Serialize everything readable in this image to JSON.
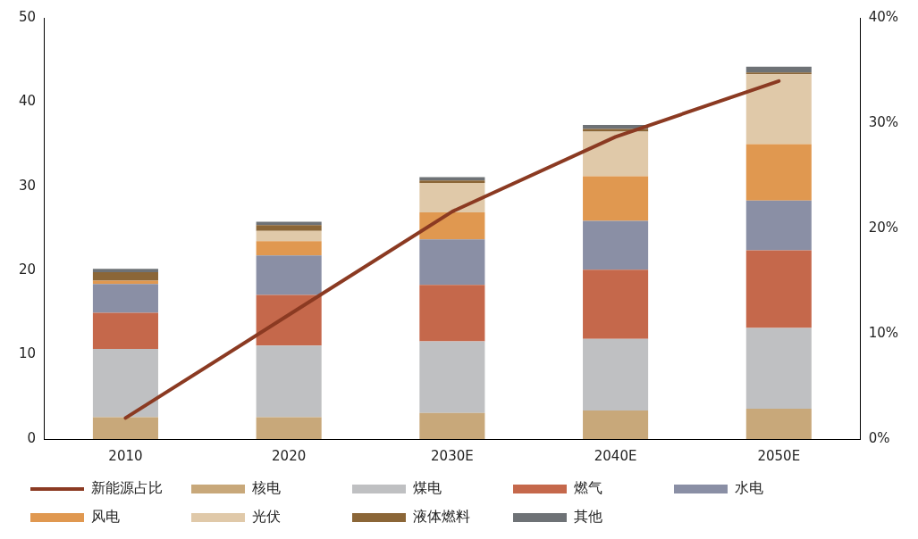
{
  "chart_data": {
    "type": "bar",
    "stacked": true,
    "categories": [
      "2010",
      "2020",
      "2030E",
      "2040E",
      "2050E"
    ],
    "series": [
      {
        "name": "核电",
        "color": "#c8a87a",
        "values": [
          2.6,
          2.6,
          3.1,
          3.4,
          3.6
        ]
      },
      {
        "name": "煤电",
        "color": "#bfc0c2",
        "values": [
          8.1,
          8.5,
          8.5,
          8.5,
          9.6
        ]
      },
      {
        "name": "燃气",
        "color": "#c5684b",
        "values": [
          4.3,
          6.0,
          6.7,
          8.2,
          9.2
        ]
      },
      {
        "name": "水电",
        "color": "#8a8fa5",
        "values": [
          3.4,
          4.7,
          5.4,
          5.8,
          5.9
        ]
      },
      {
        "name": "风电",
        "color": "#e09850",
        "values": [
          0.4,
          1.7,
          3.2,
          5.3,
          6.7
        ]
      },
      {
        "name": "光伏",
        "color": "#e0c9a9",
        "values": [
          0,
          1.2,
          3.5,
          5.3,
          8.3
        ]
      },
      {
        "name": "液体燃料",
        "color": "#8b6637",
        "values": [
          1.0,
          0.7,
          0.3,
          0.3,
          0.2
        ]
      },
      {
        "name": "其他",
        "color": "#6e7276",
        "values": [
          0.4,
          0.4,
          0.4,
          0.5,
          0.7
        ]
      },
      {
        "name": "新能源占比",
        "type": "line",
        "axis": "y2",
        "color": "#8b3a22",
        "values": [
          2.0,
          11.8,
          21.6,
          28.7,
          34.0
        ]
      }
    ],
    "ylim": [
      0,
      50
    ],
    "yticks": [
      0,
      10,
      20,
      30,
      40,
      50
    ],
    "y2lim": [
      0,
      40
    ],
    "y2ticks": [
      {
        "value": 0,
        "label": "0%"
      },
      {
        "value": 10,
        "label": "10%"
      },
      {
        "value": 20,
        "label": "20%"
      },
      {
        "value": 30,
        "label": "30%"
      },
      {
        "value": 40,
        "label": "40%"
      }
    ],
    "grid": false,
    "legend": "bottom",
    "marker": "none"
  }
}
